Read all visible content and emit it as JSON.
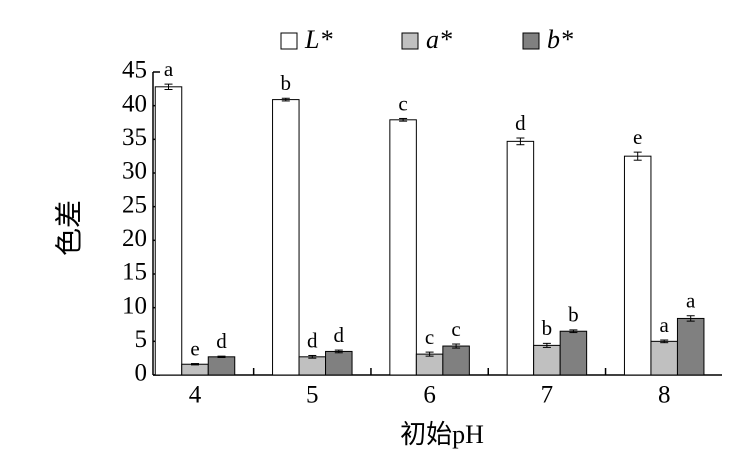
{
  "chart_data": {
    "type": "bar",
    "x_label": "初始pH",
    "y_label": "色差",
    "categories": [
      "4",
      "5",
      "6",
      "7",
      "8"
    ],
    "series": [
      {
        "name": "L*",
        "color": "#ffffff",
        "values": [
          42.8,
          40.9,
          37.9,
          34.7,
          32.5
        ],
        "errors": [
          0.4,
          0.2,
          0.2,
          0.5,
          0.6
        ],
        "letters": [
          "a",
          "b",
          "c",
          "d",
          "e"
        ]
      },
      {
        "name": "a*",
        "color": "#c0c0c0",
        "values": [
          1.6,
          2.7,
          3.1,
          4.4,
          5.0
        ],
        "errors": [
          0.1,
          0.2,
          0.3,
          0.3,
          0.2
        ],
        "letters": [
          "e",
          "d",
          "c",
          "b",
          "a"
        ]
      },
      {
        "name": "b*",
        "color": "#808080",
        "values": [
          2.7,
          3.5,
          4.3,
          6.5,
          8.4
        ],
        "errors": [
          0.1,
          0.2,
          0.3,
          0.2,
          0.4
        ],
        "letters": [
          "d",
          "d",
          "c",
          "b",
          "a"
        ]
      }
    ],
    "ylim": [
      0,
      45
    ],
    "yticks": [
      0,
      5,
      10,
      15,
      20,
      25,
      30,
      35,
      40,
      45
    ]
  }
}
